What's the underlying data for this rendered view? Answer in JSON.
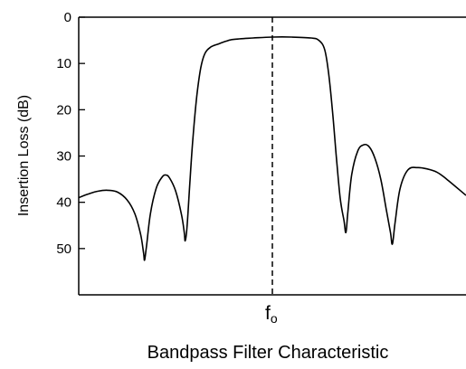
{
  "chart_data": {
    "type": "line",
    "caption": "Bandpass Filter Characteristic",
    "ylabel": "Insertion Loss (dB)",
    "xlabel": "",
    "y_inverted": true,
    "ylim": [
      0,
      60
    ],
    "yticks": [
      0,
      10,
      20,
      30,
      40,
      50
    ],
    "xlim": [
      -1,
      1
    ],
    "x_center_marker": {
      "label_main": "f",
      "label_sub": "o",
      "x": 0,
      "style": "dashed"
    },
    "series": [
      {
        "points": [
          [
            -1.0,
            39.0
          ],
          [
            -0.95,
            38.2
          ],
          [
            -0.9,
            37.6
          ],
          [
            -0.85,
            37.4
          ],
          [
            -0.8,
            37.8
          ],
          [
            -0.75,
            39.5
          ],
          [
            -0.71,
            42.5
          ],
          [
            -0.68,
            47.0
          ],
          [
            -0.665,
            51.0
          ],
          [
            -0.66,
            52.5
          ],
          [
            -0.65,
            49.5
          ],
          [
            -0.63,
            42.5
          ],
          [
            -0.6,
            37.0
          ],
          [
            -0.57,
            34.6
          ],
          [
            -0.55,
            34.1
          ],
          [
            -0.53,
            34.8
          ],
          [
            -0.5,
            37.5
          ],
          [
            -0.47,
            42.5
          ],
          [
            -0.455,
            46.5
          ],
          [
            -0.45,
            48.3
          ],
          [
            -0.44,
            45.0
          ],
          [
            -0.425,
            35.0
          ],
          [
            -0.41,
            26.0
          ],
          [
            -0.39,
            17.0
          ],
          [
            -0.37,
            11.0
          ],
          [
            -0.35,
            8.0
          ],
          [
            -0.32,
            6.5
          ],
          [
            -0.28,
            5.8
          ],
          [
            -0.24,
            5.2
          ],
          [
            -0.2,
            4.8
          ],
          [
            -0.1,
            4.5
          ],
          [
            0.0,
            4.3
          ],
          [
            0.1,
            4.3
          ],
          [
            0.2,
            4.5
          ],
          [
            0.24,
            5.0
          ],
          [
            0.27,
            7.0
          ],
          [
            0.29,
            12.0
          ],
          [
            0.31,
            20.0
          ],
          [
            0.33,
            30.0
          ],
          [
            0.35,
            39.0
          ],
          [
            0.37,
            44.0
          ],
          [
            0.38,
            46.5
          ],
          [
            0.39,
            42.0
          ],
          [
            0.41,
            34.0
          ],
          [
            0.44,
            29.0
          ],
          [
            0.47,
            27.6
          ],
          [
            0.5,
            28.0
          ],
          [
            0.53,
            30.5
          ],
          [
            0.56,
            35.0
          ],
          [
            0.59,
            42.0
          ],
          [
            0.61,
            46.5
          ],
          [
            0.62,
            49.0
          ],
          [
            0.635,
            44.0
          ],
          [
            0.66,
            37.0
          ],
          [
            0.7,
            33.0
          ],
          [
            0.75,
            32.5
          ],
          [
            0.8,
            32.8
          ],
          [
            0.85,
            33.5
          ],
          [
            0.9,
            35.0
          ],
          [
            1.0,
            38.5
          ]
        ]
      }
    ]
  }
}
